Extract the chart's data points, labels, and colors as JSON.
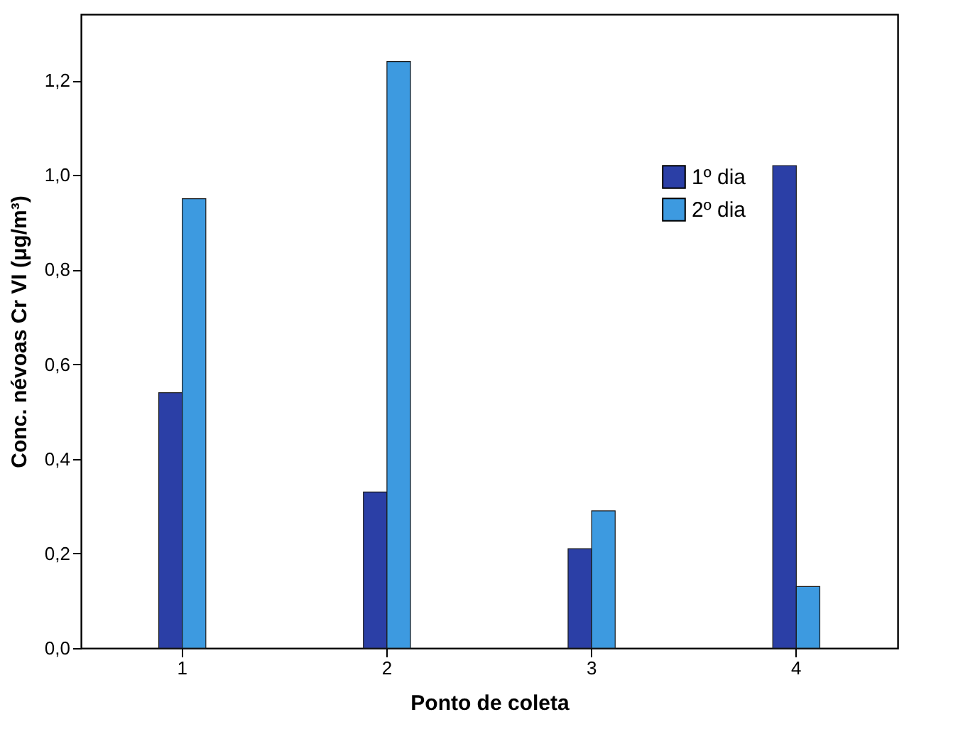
{
  "chart_data": {
    "type": "bar",
    "xlabel": "Ponto de coleta",
    "ylabel": "Conc. névoas Cr VI (μg/m³)",
    "categories": [
      "1",
      "2",
      "3",
      "4"
    ],
    "series": [
      {
        "name": "1º dia",
        "color": "#2b3fa6",
        "values": [
          0.54,
          0.33,
          0.21,
          1.02
        ]
      },
      {
        "name": "2º dia",
        "color": "#3d9ae0",
        "values": [
          0.95,
          1.24,
          0.29,
          0.13
        ]
      }
    ],
    "ylim": [
      0,
      1.34
    ],
    "yticks": [
      {
        "value": 0,
        "label": "0,0"
      },
      {
        "value": 0.2,
        "label": "0,2"
      },
      {
        "value": 0.4,
        "label": "0,4"
      },
      {
        "value": 0.6,
        "label": "0,6"
      },
      {
        "value": 0.8,
        "label": "0,8"
      },
      {
        "value": 1.0,
        "label": "1,0"
      },
      {
        "value": 1.2,
        "label": "1,2"
      }
    ],
    "grid": false,
    "legend": "top right"
  }
}
